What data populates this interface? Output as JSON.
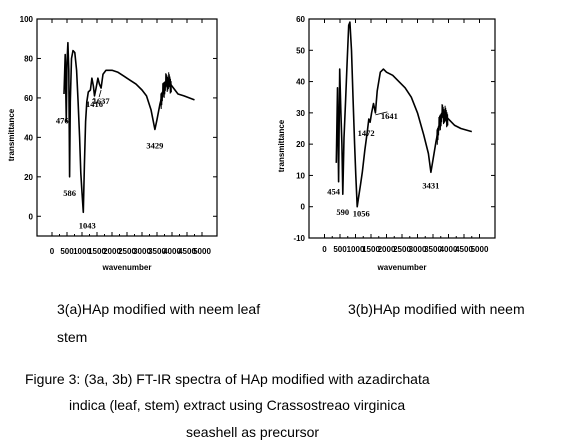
{
  "chart_data": [
    {
      "type": "line",
      "xlabel": "wavenumber",
      "ylabel": "transmittance",
      "xlim": [
        -500,
        5500
      ],
      "ylim": [
        -10,
        100
      ],
      "x_ticks": [
        "0",
        "500",
        "1000",
        "1500",
        "2000",
        "2500",
        "3000",
        "3500",
        "4000",
        "4500",
        "5000"
      ],
      "y_ticks": [
        "0",
        "20",
        "40",
        "60",
        "80",
        "100"
      ],
      "series": [
        {
          "x": [
            400,
            440,
            476,
            500,
            530,
            560,
            586,
            610,
            650,
            700,
            760,
            820,
            870,
            920,
            960,
            1000,
            1043,
            1080,
            1120,
            1160,
            1210,
            1280,
            1330,
            1380,
            1416,
            1470,
            1530,
            1580,
            1637,
            1700,
            1800,
            1900,
            2000,
            2200,
            2400,
            2600,
            2800,
            3000,
            3150,
            3300,
            3429,
            3500,
            3600,
            3700,
            3800,
            3900,
            4000,
            4200,
            4400,
            4750
          ],
          "y": [
            62,
            82,
            48,
            78,
            88,
            74,
            20,
            58,
            80,
            84,
            83,
            74,
            58,
            40,
            22,
            12,
            2,
            26,
            48,
            58,
            63,
            64,
            70,
            66,
            61,
            65,
            70,
            67,
            65,
            72,
            74,
            74,
            74,
            73,
            71,
            69,
            67,
            64,
            61,
            54,
            44,
            49,
            57,
            63,
            68,
            68,
            66,
            62,
            61,
            59
          ]
        }
      ],
      "annotations": [
        "476",
        "586",
        "1043",
        "1416",
        "1637",
        "3429"
      ]
    },
    {
      "type": "line",
      "xlabel": "wavenumber",
      "ylabel": "transmittance",
      "xlim": [
        -500,
        5500
      ],
      "ylim": [
        -10,
        60
      ],
      "x_ticks": [
        "0",
        "500",
        "1000",
        "1500",
        "2000",
        "2500",
        "3000",
        "3500",
        "4000",
        "4500",
        "5000"
      ],
      "y_ticks": [
        "-10",
        "0",
        "10",
        "20",
        "30",
        "40",
        "50",
        "60"
      ],
      "series": [
        {
          "x": [
            380,
            420,
            454,
            490,
            530,
            560,
            590,
            630,
            680,
            730,
            780,
            820,
            870,
            920,
            970,
            1010,
            1056,
            1100,
            1160,
            1220,
            1300,
            1380,
            1430,
            1472,
            1520,
            1580,
            1641,
            1700,
            1800,
            1900,
            2000,
            2200,
            2400,
            2600,
            2800,
            3000,
            3200,
            3350,
            3431,
            3500,
            3600,
            3700,
            3800,
            3900,
            4000,
            4200,
            4400,
            4750
          ],
          "y": [
            14,
            38,
            8,
            44,
            30,
            20,
            4,
            22,
            34,
            46,
            58,
            59,
            50,
            35,
            20,
            10,
            0,
            3,
            7,
            11,
            18,
            24,
            28,
            27,
            30,
            33,
            30,
            37,
            43,
            44,
            43,
            42,
            40,
            38,
            35,
            30,
            23,
            17,
            11,
            15,
            21,
            26,
            30,
            29,
            28,
            26,
            25,
            24
          ]
        }
      ],
      "annotations": [
        "454",
        "590",
        "1056",
        "1472",
        "1641",
        "3431"
      ]
    }
  ],
  "captions": {
    "left": "3(a)HAp modified with neem leaf",
    "left_wrap": "stem",
    "right": "3(b)HAp modified with neem"
  },
  "figure_caption": {
    "line1": "Figure 3: (3a, 3b) FT-IR spectra of HAp modified with azadirchata",
    "line2": "indica (leaf, stem) extract using Crassostreao virginica",
    "line3": "seashell as precursor"
  }
}
